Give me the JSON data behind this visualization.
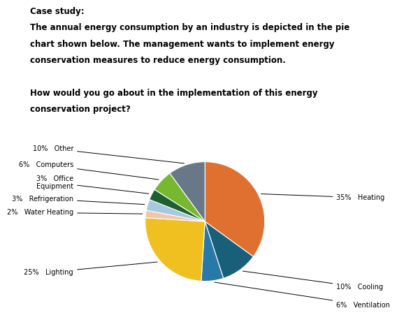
{
  "slices": [
    {
      "label": "Heating",
      "pct": 35,
      "color": "#E07030"
    },
    {
      "label": "Cooling",
      "pct": 10,
      "color": "#1A5F7A"
    },
    {
      "label": "Ventilation",
      "pct": 6,
      "color": "#2878A8"
    },
    {
      "label": "Lighting",
      "pct": 25,
      "color": "#F0C020"
    },
    {
      "label": "Water Heating",
      "pct": 2,
      "color": "#F0C8A8"
    },
    {
      "label": "Refrigeration",
      "pct": 3,
      "color": "#A8C8E0"
    },
    {
      "label": "Office\nEquipment",
      "pct": 3,
      "color": "#1E6030"
    },
    {
      "label": "Computers",
      "pct": 6,
      "color": "#78B830"
    },
    {
      "label": "Other",
      "pct": 10,
      "color": "#6878888"
    }
  ],
  "slices_fixed": [
    {
      "label": "Heating",
      "pct": 35,
      "color": "#E07030"
    },
    {
      "label": "Cooling",
      "pct": 10,
      "color": "#1A5F7A"
    },
    {
      "label": "Ventilation",
      "pct": 6,
      "color": "#2878A8"
    },
    {
      "label": "Lighting",
      "pct": 25,
      "color": "#F0C020"
    },
    {
      "label": "Water Heating",
      "pct": 2,
      "color": "#F0C8A8"
    },
    {
      "label": "Refrigeration",
      "pct": 3,
      "color": "#A8C8E0"
    },
    {
      "label": "Office\nEquipment",
      "pct": 3,
      "color": "#1E6030"
    },
    {
      "label": "Computers",
      "pct": 6,
      "color": "#78B830"
    },
    {
      "label": "Other",
      "pct": 10,
      "color": "#687888"
    }
  ],
  "title_text": "Case study:\nThe annual energy consumption by an industry is depicted in the pie\nchart shown below. The management wants to implement energy\nconservation measures to reduce energy consumption.\n\nHow would you go about in the implementation of this energy\nconservation project?",
  "bg_color": "#FFFFFF",
  "text_color": "#000000",
  "label_fontsize": 7.0,
  "title_fontsize": 8.5,
  "startangle": 90
}
